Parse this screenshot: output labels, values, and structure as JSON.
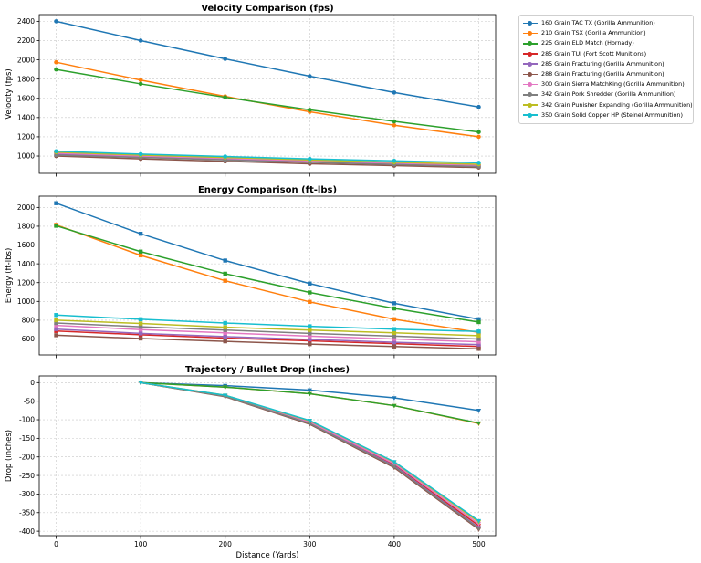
{
  "chart_data": [
    {
      "type": "line",
      "title": "Velocity Comparison (fps)",
      "xlabel": "",
      "ylabel": "Velocity (fps)",
      "x": [
        0,
        100,
        200,
        300,
        400,
        500
      ],
      "xlim": [
        -20,
        520
      ],
      "ylim": [
        820,
        2470
      ],
      "yticks": [
        1000,
        1200,
        1400,
        1600,
        1800,
        2000,
        2200,
        2400
      ],
      "grid": true,
      "marker": "circle",
      "series": [
        {
          "name": "160 Grain TAC TX (Gorilla Ammunition)",
          "color": "#1f77b4",
          "values": [
            2400,
            2200,
            2010,
            1830,
            1660,
            1510
          ]
        },
        {
          "name": "210 Grain TSX (Gorilla Ammunition)",
          "color": "#ff7f0e",
          "values": [
            1975,
            1790,
            1620,
            1460,
            1320,
            1200
          ]
        },
        {
          "name": "225 Grain ELD Match (Hornady)",
          "color": "#2ca02c",
          "values": [
            1900,
            1750,
            1610,
            1480,
            1360,
            1250
          ]
        },
        {
          "name": "285 Grain TUI (Fort Scott Munitions)",
          "color": "#d62728",
          "values": [
            1040,
            1010,
            980,
            955,
            930,
            905
          ]
        },
        {
          "name": "285 Grain Fracturing (Gorilla Ammunition)",
          "color": "#9467bd",
          "values": [
            1020,
            990,
            965,
            940,
            915,
            895
          ]
        },
        {
          "name": "288 Grain Fracturing (Gorilla Ammunition)",
          "color": "#8c564b",
          "values": [
            1000,
            970,
            945,
            920,
            900,
            880
          ]
        },
        {
          "name": "300 Grain Sierra MatchKing (Gorilla Ammunition)",
          "color": "#e377c2",
          "values": [
            1030,
            1000,
            975,
            950,
            925,
            905
          ]
        },
        {
          "name": "342 Grain Pork Shredder (Gorilla Ammunition)",
          "color": "#7f7f7f",
          "values": [
            1010,
            985,
            960,
            935,
            912,
            890
          ]
        },
        {
          "name": "342 Grain Punisher Expanding (Gorilla Ammunition)",
          "color": "#bcbd22",
          "values": [
            1040,
            1010,
            985,
            960,
            935,
            915
          ]
        },
        {
          "name": "350 Grain Solid Copper HP (Steinel Ammunition)",
          "color": "#17becf",
          "values": [
            1050,
            1020,
            995,
            970,
            950,
            930
          ]
        }
      ]
    },
    {
      "type": "line",
      "title": "Energy Comparison (ft-lbs)",
      "xlabel": "",
      "ylabel": "Energy (ft-lbs)",
      "x": [
        0,
        100,
        200,
        300,
        400,
        500
      ],
      "xlim": [
        -20,
        520
      ],
      "ylim": [
        430,
        2120
      ],
      "yticks": [
        600,
        800,
        1000,
        1200,
        1400,
        1600,
        1800,
        2000
      ],
      "grid": true,
      "marker": "square",
      "series": [
        {
          "name": "160 Grain TAC TX (Gorilla Ammunition)",
          "color": "#1f77b4",
          "values": [
            2045,
            1720,
            1435,
            1190,
            980,
            810
          ]
        },
        {
          "name": "210 Grain TSX (Gorilla Ammunition)",
          "color": "#ff7f0e",
          "values": [
            1815,
            1490,
            1220,
            995,
            810,
            670
          ]
        },
        {
          "name": "225 Grain ELD Match (Hornady)",
          "color": "#2ca02c",
          "values": [
            1805,
            1530,
            1295,
            1095,
            925,
            780
          ]
        },
        {
          "name": "285 Grain TUI (Fort Scott Munitions)",
          "color": "#d62728",
          "values": [
            685,
            645,
            610,
            580,
            550,
            520
          ]
        },
        {
          "name": "285 Grain Fracturing (Gorilla Ammunition)",
          "color": "#9467bd",
          "values": [
            705,
            660,
            625,
            595,
            565,
            540
          ]
        },
        {
          "name": "288 Grain Fracturing (Gorilla Ammunition)",
          "color": "#8c564b",
          "values": [
            640,
            605,
            575,
            545,
            520,
            495
          ]
        },
        {
          "name": "300 Grain Sierra MatchKing (Gorilla Ammunition)",
          "color": "#e377c2",
          "values": [
            745,
            700,
            665,
            630,
            600,
            570
          ]
        },
        {
          "name": "342 Grain Pork Shredder (Gorilla Ammunition)",
          "color": "#7f7f7f",
          "values": [
            770,
            730,
            695,
            660,
            630,
            600
          ]
        },
        {
          "name": "342 Grain Punisher Expanding (Gorilla Ammunition)",
          "color": "#bcbd22",
          "values": [
            800,
            765,
            725,
            695,
            665,
            635
          ]
        },
        {
          "name": "350 Grain Solid Copper HP (Steinel Ammunition)",
          "color": "#17becf",
          "values": [
            855,
            810,
            770,
            735,
            705,
            680
          ]
        }
      ]
    },
    {
      "type": "line",
      "title": "Trajectory / Bullet Drop (inches)",
      "xlabel": "Distance (Yards)",
      "ylabel": "Drop (inches)",
      "x": [
        100,
        200,
        300,
        400,
        500
      ],
      "xlim": [
        -20,
        520
      ],
      "xticks": [
        0,
        100,
        200,
        300,
        400,
        500
      ],
      "ylim": [
        -412,
        18
      ],
      "yticks": [
        0,
        -50,
        -100,
        -150,
        -200,
        -250,
        -300,
        -350,
        -400
      ],
      "grid": true,
      "marker": "triangle-down",
      "series": [
        {
          "name": "160 Grain TAC TX (Gorilla Ammunition)",
          "color": "#1f77b4",
          "values": [
            0,
            -8,
            -20,
            -41,
            -75
          ]
        },
        {
          "name": "210 Grain TSX (Gorilla Ammunition)",
          "color": "#ff7f0e",
          "values": [
            0,
            -12,
            -30,
            -62,
            -110
          ]
        },
        {
          "name": "225 Grain ELD Match (Hornady)",
          "color": "#2ca02c",
          "values": [
            0,
            -12,
            -30,
            -62,
            -109
          ]
        },
        {
          "name": "285 Grain TUI (Fort Scott Munitions)",
          "color": "#d62728",
          "values": [
            0,
            -36,
            -108,
            -222,
            -385
          ]
        },
        {
          "name": "285 Grain Fracturing (Gorilla Ammunition)",
          "color": "#9467bd",
          "values": [
            0,
            -36,
            -109,
            -224,
            -390
          ]
        },
        {
          "name": "288 Grain Fracturing (Gorilla Ammunition)",
          "color": "#8c564b",
          "values": [
            0,
            -38,
            -112,
            -229,
            -395
          ]
        },
        {
          "name": "300 Grain Sierra MatchKing (Gorilla Ammunition)",
          "color": "#e377c2",
          "values": [
            0,
            -35,
            -106,
            -218,
            -380
          ]
        },
        {
          "name": "342 Grain Pork Shredder (Gorilla Ammunition)",
          "color": "#7f7f7f",
          "values": [
            0,
            -37,
            -110,
            -226,
            -392
          ]
        },
        {
          "name": "342 Grain Punisher Expanding (Gorilla Ammunition)",
          "color": "#bcbd22",
          "values": [
            0,
            -34,
            -103,
            -214,
            -375
          ]
        },
        {
          "name": "350 Grain Solid Copper HP (Steinel Ammunition)",
          "color": "#17becf",
          "values": [
            0,
            -34,
            -102,
            -213,
            -372
          ]
        }
      ]
    }
  ],
  "legend": {
    "placement": "outside-top-right",
    "items": [
      {
        "label": "160 Grain TAC TX (Gorilla Ammunition)",
        "color": "#1f77b4"
      },
      {
        "label": "210 Grain TSX (Gorilla Ammunition)",
        "color": "#ff7f0e"
      },
      {
        "label": "225 Grain ELD Match (Hornady)",
        "color": "#2ca02c"
      },
      {
        "label": "285 Grain TUI (Fort Scott Munitions)",
        "color": "#d62728"
      },
      {
        "label": "285 Grain Fracturing (Gorilla Ammunition)",
        "color": "#9467bd"
      },
      {
        "label": "288 Grain Fracturing (Gorilla Ammunition)",
        "color": "#8c564b"
      },
      {
        "label": "300 Grain Sierra MatchKing (Gorilla Ammunition)",
        "color": "#e377c2"
      },
      {
        "label": "342 Grain Pork Shredder (Gorilla Ammunition)",
        "color": "#7f7f7f"
      },
      {
        "label": "342 Grain Punisher Expanding (Gorilla Ammunition)",
        "color": "#bcbd22"
      },
      {
        "label": "350 Grain Solid Copper HP (Steinel Ammunition)",
        "color": "#17becf"
      }
    ]
  }
}
